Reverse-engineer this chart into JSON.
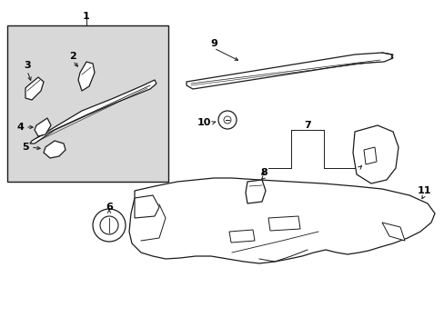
{
  "bg": "#ffffff",
  "lc": "#1a1a1a",
  "box_bg": "#d8d8d8",
  "figsize": [
    4.89,
    3.6
  ],
  "dpi": 100
}
